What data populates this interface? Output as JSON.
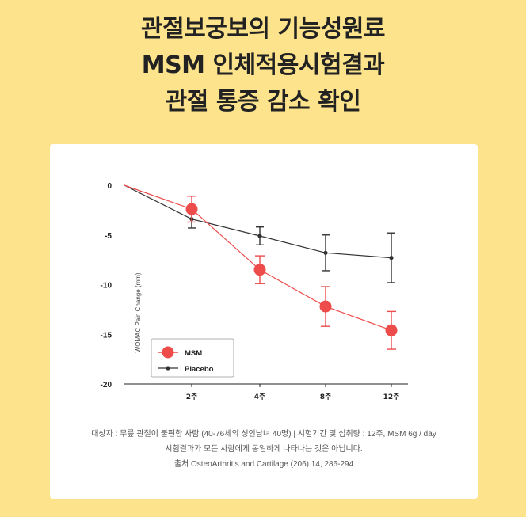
{
  "headline": {
    "line1": "관절보궁보의 기능성원료",
    "line2": "MSM 인체적용시험결과",
    "line3": "관절 통증 감소 확인"
  },
  "chart_data": {
    "type": "line",
    "categories": [
      "0",
      "2주",
      "4주",
      "8주",
      "12주"
    ],
    "tick_labels_x": [
      "2주",
      "4주",
      "8주",
      "12주"
    ],
    "ylabel": "WOMAC Pain Change (mm)",
    "ylim": [
      -20,
      0
    ],
    "yticks": [
      0,
      -5,
      -10,
      -15,
      -20
    ],
    "grid": false,
    "legend_position": "bottom-left",
    "series": [
      {
        "name": "MSM",
        "color": "#EE4B4B",
        "values": [
          0,
          -2.4,
          -8.5,
          -12.2,
          -14.6
        ],
        "err": [
          0,
          1.3,
          1.4,
          2.0,
          1.9
        ]
      },
      {
        "name": "Placebo",
        "color": "#333333",
        "values": [
          0,
          -3.4,
          -5.1,
          -6.8,
          -7.3
        ],
        "err": [
          0,
          0.9,
          0.9,
          1.8,
          2.5
        ]
      }
    ]
  },
  "footnotes": {
    "line1": "대상자 : 무릎 관절이 불편한 사람 (40-76세의 성인남녀 40명) | 시험기간 및 섭취량 : 12주, MSM 6g / day",
    "line2": "시험결과가 모든 사람에게 동일하게 나타나는 것은 아닙니다.",
    "line3": "출처 OsteoArthritis and Cartilage (206) 14, 286-294"
  }
}
